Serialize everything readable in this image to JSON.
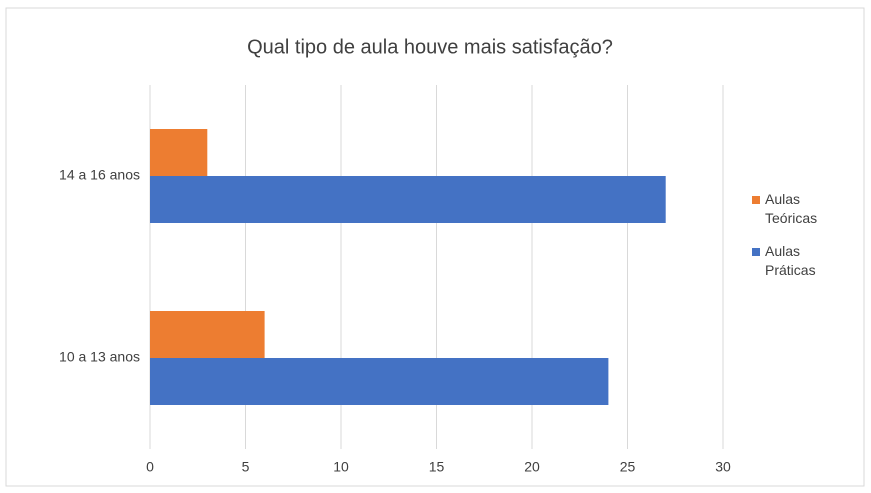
{
  "chart_data": {
    "type": "bar",
    "orientation": "horizontal",
    "title": "Qual tipo de aula houve mais satisfação?",
    "categories": [
      "10 a 13 anos",
      "14 a 16 anos"
    ],
    "series": [
      {
        "name": "Aulas Teóricas",
        "color": "#ed7d31",
        "values": [
          6,
          3
        ]
      },
      {
        "name": "Aulas Práticas",
        "color": "#4472c4",
        "values": [
          24,
          27
        ]
      }
    ],
    "xlim": [
      0,
      30
    ],
    "xticks": [
      0,
      5,
      10,
      15,
      20,
      25,
      30
    ],
    "grid": true,
    "legend": "right"
  }
}
